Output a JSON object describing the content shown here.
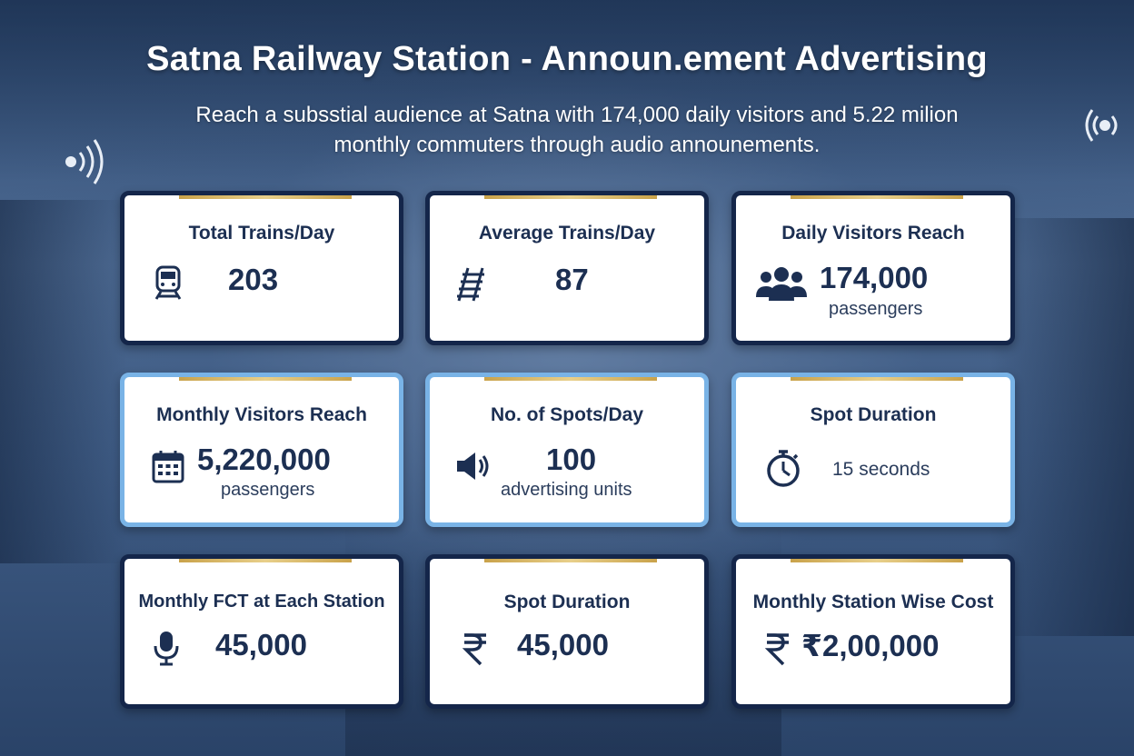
{
  "header": {
    "title": "Satna Railway Station - Announ.ement Advertising",
    "subtitle_line1": "Reach a subsstial audience at Satna with 174,000 daily visitors and 5.22 milion",
    "subtitle_line2": "monthly commuters through audio announements."
  },
  "colors": {
    "card_text": "#1c2f52",
    "dark_border": "#14264a",
    "light_border": "#79b3e6",
    "gold_accent": "#c9a24a"
  },
  "cards": [
    {
      "label": "Total Trains/Day",
      "value": "203",
      "unit": "",
      "icon": "train-icon"
    },
    {
      "label": "Average Trains/Day",
      "value": "87",
      "unit": "",
      "icon": "railway-track-icon"
    },
    {
      "label": "Daily Visitors Reach",
      "value": "174,000",
      "unit": "passengers",
      "icon": "people-group-icon"
    },
    {
      "label": "Monthly Visitors Reach",
      "value": "5,220,000",
      "unit": "passengers",
      "icon": "calendar-icon"
    },
    {
      "label": "No. of Spots/Day",
      "value": "100",
      "unit": "advertising units",
      "icon": "speaker-icon"
    },
    {
      "label": "Spot Duration",
      "value": "",
      "unit": "15 seconds",
      "icon": "stopwatch-icon"
    },
    {
      "label": "Monthly FCT at Each Station",
      "value": "45,000",
      "unit": "",
      "icon": "microphone-icon"
    },
    {
      "label": "Spot Duration",
      "value": "45,000",
      "unit": "",
      "icon": "rupee-icon"
    },
    {
      "label": "Monthly Station Wise Cost",
      "value": "₹2,00,000",
      "unit": "",
      "icon": "rupee-icon"
    }
  ]
}
